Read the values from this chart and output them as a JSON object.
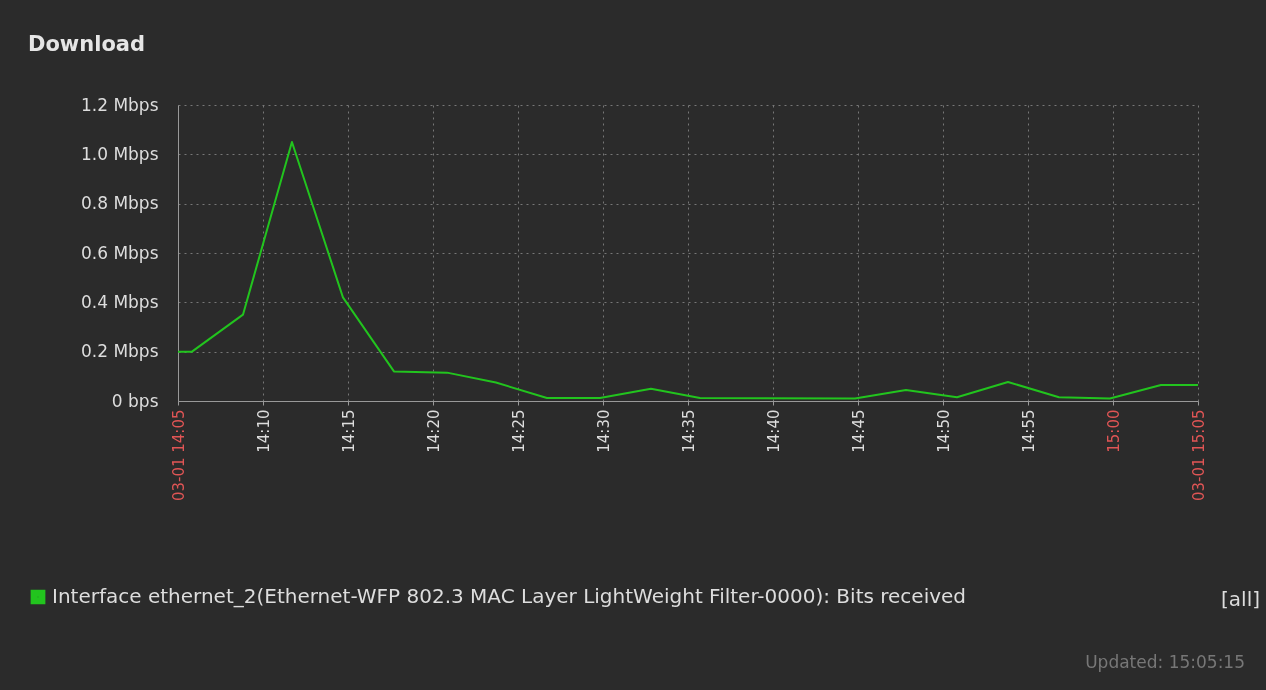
{
  "chart_data": {
    "type": "line",
    "title": "Download",
    "x": [
      14.0833,
      14.097,
      14.147,
      14.195,
      14.245,
      14.295,
      14.347,
      14.395,
      14.445,
      14.497,
      14.547,
      14.595,
      14.747,
      14.797,
      14.847,
      14.897,
      14.947,
      14.997,
      15.047,
      15.0833
    ],
    "series": [
      {
        "name": "Interface ethernet_2(Ethernet-WFP 802.3 MAC Layer LightWeight Filter-0000): Bits received",
        "color": "#22c41e",
        "values": [
          0.2,
          0.2,
          0.35,
          1.05,
          0.42,
          0.12,
          0.115,
          0.075,
          0.012,
          0.012,
          0.05,
          0.012,
          0.01,
          0.045,
          0.015,
          0.077,
          0.015,
          0.01,
          0.065,
          0.065
        ]
      }
    ],
    "xlim": [
      14.0833,
      15.0833
    ],
    "xticks": [
      {
        "value": 14.0833,
        "label": "03-01 14:05"
      },
      {
        "value": 14.1667,
        "label": "14:10"
      },
      {
        "value": 14.25,
        "label": "14:15"
      },
      {
        "value": 14.3333,
        "label": "14:20"
      },
      {
        "value": 14.4167,
        "label": "14:25"
      },
      {
        "value": 14.5,
        "label": "14:30"
      },
      {
        "value": 14.5833,
        "label": "14:35"
      },
      {
        "value": 14.6667,
        "label": "14:40"
      },
      {
        "value": 14.75,
        "label": "14:45"
      },
      {
        "value": 14.8333,
        "label": "14:50"
      },
      {
        "value": 14.9167,
        "label": "14:55"
      },
      {
        "value": 15.0,
        "label": "15:00"
      },
      {
        "value": 15.0833,
        "label": "03-01 15:05"
      }
    ],
    "ylim": [
      0,
      1.2
    ],
    "yticks": [
      {
        "value": 0,
        "label": "0 bps"
      },
      {
        "value": 0.2,
        "label": "0.2 Mbps"
      },
      {
        "value": 0.4,
        "label": "0.4 Mbps"
      },
      {
        "value": 0.6,
        "label": "0.6 Mbps"
      },
      {
        "value": 0.8,
        "label": "0.8 Mbps"
      },
      {
        "value": 1.0,
        "label": "1.0 Mbps"
      },
      {
        "value": 1.2,
        "label": "1.2 Mbps"
      }
    ],
    "grid": true,
    "legend": "bottom left",
    "marker": "none",
    "line_style": "solid",
    "annotations": [
      "[all]",
      "Updated: 15:05:15"
    ]
  }
}
